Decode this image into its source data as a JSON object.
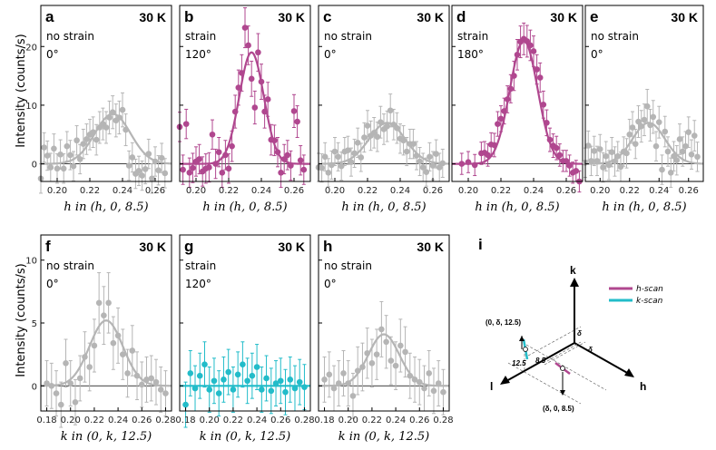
{
  "colors": {
    "gray": "#b5b5b5",
    "magenta": "#b0478f",
    "cyan": "#22bcc9",
    "axis": "#000000"
  },
  "chart_data": [
    {
      "id": "a",
      "type": "scatter",
      "panel_label": "a",
      "temperature": "30 K",
      "strain": "no strain",
      "angle": "0°",
      "color": "gray",
      "xlabel": "h in (h, 0, 8.5)",
      "ylabel": "Intensity (counts/s)",
      "xlim": [
        0.19,
        0.27
      ],
      "ylim": [
        -3,
        27
      ],
      "xticks": [
        0.2,
        0.22,
        0.24,
        0.26
      ],
      "xtick_labels": [
        "0.20",
        "0.22",
        "0.24",
        "0.26"
      ],
      "yticks": [
        0,
        10,
        20
      ],
      "ytick_labels": [
        "0",
        "10",
        "20"
      ],
      "fit": {
        "amp": 8.5,
        "center": 0.234,
        "sigma": 0.011,
        "offset": 0
      },
      "x": [
        0.19,
        0.192,
        0.194,
        0.196,
        0.198,
        0.2,
        0.202,
        0.204,
        0.206,
        0.208,
        0.21,
        0.212,
        0.214,
        0.216,
        0.218,
        0.22,
        0.222,
        0.224,
        0.226,
        0.228,
        0.23,
        0.232,
        0.234,
        0.236,
        0.238,
        0.24,
        0.242,
        0.244,
        0.246,
        0.248,
        0.25,
        0.252,
        0.254,
        0.256,
        0.258,
        0.26,
        0.262,
        0.264,
        0.266
      ],
      "y": [
        -2.5,
        2.8,
        1.4,
        -0.6,
        2.6,
        -0.8,
        1.6,
        -0.8,
        3.0,
        1.5,
        -0.4,
        4.0,
        0.8,
        3.4,
        4.2,
        5.0,
        5.4,
        4.1,
        6.2,
        6.8,
        6.2,
        7.9,
        8.8,
        7.4,
        7.9,
        9.2,
        5.8,
        -0.3,
        1.1,
        -1.7,
        -1.2,
        -2.0,
        -0.9,
        1.7,
        -2.5,
        0.4,
        -1.1,
        1.0,
        -1.6
      ],
      "err": [
        2.5,
        2.5,
        2.5,
        2.4,
        2.5,
        2.5,
        2.5,
        2.5,
        2.5,
        2.5,
        2.5,
        2.5,
        2.5,
        2.5,
        2.6,
        2.6,
        2.6,
        2.6,
        2.7,
        2.7,
        2.7,
        2.8,
        2.8,
        2.8,
        2.8,
        2.9,
        2.7,
        2.5,
        2.5,
        2.5,
        2.5,
        2.5,
        2.5,
        2.5,
        2.5,
        2.5,
        2.5,
        2.5,
        2.5
      ]
    },
    {
      "id": "b",
      "type": "scatter",
      "panel_label": "b",
      "temperature": "30 K",
      "strain": "strain",
      "angle": "120°",
      "color": "magenta",
      "xlabel": "h in (h, 0, 8.5)",
      "ylabel": "",
      "xlim": [
        0.19,
        0.27
      ],
      "ylim": [
        -3,
        27
      ],
      "xticks": [
        0.2,
        0.22,
        0.24,
        0.26
      ],
      "xtick_labels": [
        "0.20",
        "0.22",
        "0.24",
        "0.26"
      ],
      "yticks": [
        0,
        10,
        20
      ],
      "ytick_labels": [
        "",
        "",
        ""
      ],
      "fit": {
        "amp": 19,
        "center": 0.234,
        "sigma": 0.0075,
        "offset": 0
      },
      "x": [
        0.19,
        0.192,
        0.194,
        0.196,
        0.198,
        0.2,
        0.202,
        0.204,
        0.206,
        0.208,
        0.21,
        0.212,
        0.214,
        0.216,
        0.218,
        0.22,
        0.222,
        0.224,
        0.226,
        0.228,
        0.23,
        0.232,
        0.234,
        0.236,
        0.238,
        0.24,
        0.242,
        0.244,
        0.246,
        0.248,
        0.25,
        0.252,
        0.254,
        0.256,
        0.258,
        0.26,
        0.262,
        0.264,
        0.266
      ],
      "y": [
        6.3,
        -1.0,
        6.8,
        -1.5,
        -0.7,
        0.4,
        0.8,
        -1.3,
        -0.8,
        -0.6,
        5.0,
        0.0,
        2.0,
        -1.5,
        1.5,
        -0.8,
        3.0,
        8.9,
        13.0,
        15.5,
        23.2,
        20.2,
        14.5,
        9.6,
        19.0,
        14.0,
        8.9,
        11.0,
        4.1,
        4.0,
        2.0,
        -1.5,
        0.8,
        1.5,
        -0.3,
        9.0,
        7.2,
        0.6,
        -1.0
      ],
      "err": [
        2.5,
        2.5,
        2.5,
        2.5,
        2.5,
        2.5,
        2.5,
        2.5,
        2.5,
        2.5,
        2.5,
        2.5,
        2.5,
        2.5,
        2.5,
        2.5,
        2.6,
        2.8,
        3.0,
        3.1,
        3.4,
        3.3,
        3.0,
        2.8,
        3.2,
        3.0,
        2.8,
        2.9,
        2.6,
        2.6,
        2.5,
        2.5,
        2.5,
        2.5,
        2.5,
        2.8,
        2.7,
        2.5,
        2.5
      ]
    },
    {
      "id": "c",
      "type": "scatter",
      "panel_label": "c",
      "temperature": "30 K",
      "strain": "no strain",
      "angle": "0°",
      "color": "gray",
      "xlabel": "h in (h, 0, 8.5)",
      "ylabel": "",
      "xlim": [
        0.19,
        0.27
      ],
      "ylim": [
        -3,
        27
      ],
      "xticks": [
        0.2,
        0.22,
        0.24,
        0.26
      ],
      "xtick_labels": [
        "0.20",
        "0.22",
        "0.24",
        "0.26"
      ],
      "yticks": [
        0,
        10,
        20
      ],
      "ytick_labels": [
        "",
        "",
        ""
      ],
      "fit": {
        "amp": 7,
        "center": 0.232,
        "sigma": 0.011,
        "offset": 0
      },
      "x": [
        0.19,
        0.192,
        0.194,
        0.196,
        0.198,
        0.2,
        0.202,
        0.204,
        0.206,
        0.208,
        0.21,
        0.212,
        0.214,
        0.216,
        0.218,
        0.22,
        0.222,
        0.224,
        0.226,
        0.228,
        0.23,
        0.232,
        0.234,
        0.236,
        0.238,
        0.24,
        0.242,
        0.244,
        0.246,
        0.248,
        0.25,
        0.252,
        0.254,
        0.256,
        0.258,
        0.26,
        0.262,
        0.264,
        0.266
      ],
      "y": [
        -0.6,
        -0.7,
        1.2,
        -1.5,
        -0.2,
        2.1,
        1.2,
        -0.4,
        2.1,
        2.3,
        0.3,
        1.8,
        3.6,
        1.1,
        4.5,
        6.5,
        4.8,
        5.3,
        4.6,
        7.1,
        5.9,
        6.4,
        9.1,
        6.7,
        6.1,
        4.3,
        4.0,
        2.1,
        3.4,
        3.4,
        1.4,
        0.4,
        -0.6,
        -1.4,
        1.2,
        -0.3,
        1.7,
        -0.6,
        0.1
      ],
      "err": [
        2.4,
        2.4,
        2.4,
        2.4,
        2.4,
        2.4,
        2.4,
        2.4,
        2.4,
        2.4,
        2.4,
        2.4,
        2.5,
        2.4,
        2.5,
        2.6,
        2.5,
        2.6,
        2.5,
        2.7,
        2.6,
        2.6,
        2.8,
        2.6,
        2.6,
        2.5,
        2.5,
        2.4,
        2.5,
        2.5,
        2.4,
        2.4,
        2.4,
        2.4,
        2.4,
        2.4,
        2.4,
        2.4,
        2.4
      ]
    },
    {
      "id": "d",
      "type": "scatter",
      "panel_label": "d",
      "temperature": "30 K",
      "strain": "strain",
      "angle": "180°",
      "color": "magenta",
      "xlabel": "h in (h, 0, 8.5)",
      "ylabel": "",
      "xlim": [
        0.19,
        0.27
      ],
      "ylim": [
        -3,
        27
      ],
      "xticks": [
        0.2,
        0.22,
        0.24,
        0.26
      ],
      "xtick_labels": [
        "0.20",
        "0.22",
        "0.24",
        "0.26"
      ],
      "yticks": [
        0,
        10,
        20
      ],
      "ytick_labels": [
        "",
        "",
        ""
      ],
      "fit": {
        "amp": 21,
        "center": 0.234,
        "sigma": 0.0085,
        "offset": 0
      },
      "x": [
        0.196,
        0.2,
        0.204,
        0.208,
        0.21,
        0.212,
        0.214,
        0.216,
        0.218,
        0.22,
        0.222,
        0.224,
        0.226,
        0.228,
        0.23,
        0.232,
        0.234,
        0.236,
        0.238,
        0.24,
        0.242,
        0.244,
        0.246,
        0.248,
        0.25,
        0.252,
        0.254,
        0.256,
        0.258,
        0.26,
        0.262,
        0.264,
        0.266,
        0.268
      ],
      "y": [
        0.0,
        0.3,
        -0.2,
        1.8,
        1.9,
        1.5,
        3.3,
        3.2,
        6.8,
        7.7,
        9.0,
        11.0,
        12.8,
        15.0,
        18.6,
        20.8,
        21.3,
        20.9,
        20.2,
        19.2,
        16.1,
        14.7,
        10.1,
        7.0,
        4.1,
        3.1,
        2.7,
        1.5,
        0.5,
        0.5,
        -0.3,
        -1.5,
        -1.2,
        -3.0
      ],
      "err": [
        1.8,
        1.8,
        1.8,
        1.9,
        1.9,
        1.9,
        2.0,
        2.0,
        2.1,
        2.2,
        2.2,
        2.3,
        2.4,
        2.5,
        2.6,
        2.7,
        2.7,
        2.7,
        2.6,
        2.6,
        2.5,
        2.5,
        2.3,
        2.2,
        2.0,
        2.0,
        2.0,
        1.9,
        1.8,
        1.8,
        1.8,
        1.8,
        1.8,
        1.8
      ]
    },
    {
      "id": "e",
      "type": "scatter",
      "panel_label": "e",
      "temperature": "30 K",
      "strain": "no strain",
      "angle": "0°",
      "color": "gray",
      "xlabel": "h in (h, 0, 8.5)",
      "ylabel": "",
      "xlim": [
        0.19,
        0.27
      ],
      "ylim": [
        -3,
        27
      ],
      "xticks": [
        0.2,
        0.22,
        0.24,
        0.26
      ],
      "xtick_labels": [
        "0.20",
        "0.22",
        "0.24",
        "0.26"
      ],
      "yticks": [
        0,
        10,
        20
      ],
      "ytick_labels": [
        "",
        "",
        ""
      ],
      "fit": {
        "amp": 7,
        "center": 0.233,
        "sigma": 0.011,
        "offset": 0
      },
      "x": [
        0.19,
        0.192,
        0.194,
        0.196,
        0.198,
        0.2,
        0.202,
        0.204,
        0.206,
        0.208,
        0.21,
        0.212,
        0.214,
        0.216,
        0.218,
        0.22,
        0.222,
        0.224,
        0.226,
        0.228,
        0.23,
        0.232,
        0.234,
        0.236,
        0.238,
        0.24,
        0.242,
        0.244,
        0.246,
        0.248,
        0.25,
        0.252,
        0.254,
        0.256,
        0.258,
        0.26,
        0.262,
        0.264,
        0.266
      ],
      "y": [
        0.2,
        3.1,
        0.5,
        2.2,
        0.5,
        2.5,
        -0.6,
        1.3,
        -0.2,
        2.0,
        0.4,
        1.3,
        -0.5,
        2.1,
        1.8,
        5.0,
        6.2,
        3.4,
        7.2,
        6.4,
        7.5,
        9.8,
        6.6,
        8.0,
        3.0,
        7.1,
        -1.0,
        5.5,
        2.1,
        -1.5,
        1.3,
        0.6,
        4.2,
        2.1,
        3.0,
        5.4,
        1.6,
        4.8,
        1.2
      ],
      "err": [
        2.5,
        2.5,
        2.5,
        2.5,
        2.5,
        2.5,
        2.5,
        2.5,
        2.5,
        2.5,
        2.5,
        2.5,
        2.5,
        2.5,
        2.5,
        2.6,
        2.7,
        2.5,
        2.7,
        2.7,
        2.7,
        2.9,
        2.7,
        2.8,
        2.5,
        2.7,
        2.5,
        2.6,
        2.5,
        2.5,
        2.5,
        2.5,
        2.6,
        2.5,
        2.5,
        2.6,
        2.5,
        2.6,
        2.5
      ]
    },
    {
      "id": "f",
      "type": "scatter",
      "panel_label": "f",
      "temperature": "30 K",
      "strain": "no strain",
      "angle": "0°",
      "color": "gray",
      "xlabel": "k in (0, k, 12.5)",
      "ylabel": "Intensity (counts/s)",
      "xlim": [
        0.175,
        0.285
      ],
      "ylim": [
        -2,
        12
      ],
      "xticks": [
        0.18,
        0.2,
        0.22,
        0.24,
        0.26,
        0.28
      ],
      "xtick_labels": [
        "0.18",
        "0.20",
        "0.22",
        "0.24",
        "0.26",
        "0.28"
      ],
      "yticks": [
        0,
        5,
        10
      ],
      "ytick_labels": [
        "0",
        "5",
        "10"
      ],
      "fit": {
        "amp": 5.2,
        "center": 0.23,
        "sigma": 0.014,
        "offset": 0
      },
      "x": [
        0.18,
        0.184,
        0.188,
        0.192,
        0.196,
        0.2,
        0.204,
        0.208,
        0.212,
        0.216,
        0.22,
        0.224,
        0.228,
        0.232,
        0.236,
        0.24,
        0.244,
        0.248,
        0.252,
        0.256,
        0.26,
        0.264,
        0.268,
        0.272,
        0.276,
        0.28
      ],
      "y": [
        0.2,
        0.0,
        -0.6,
        -1.5,
        1.8,
        0.2,
        -1.3,
        0.6,
        2.3,
        1.5,
        3.2,
        6.6,
        5.6,
        6.6,
        3.4,
        4.0,
        2.5,
        1.0,
        2.8,
        0.8,
        0.1,
        0.5,
        0.6,
        0.3,
        -0.3,
        -0.6
      ],
      "err": [
        1.8,
        1.8,
        1.8,
        1.8,
        1.9,
        1.8,
        1.8,
        1.8,
        2.0,
        1.9,
        2.1,
        2.4,
        2.3,
        2.4,
        2.1,
        2.2,
        2.0,
        1.9,
        2.0,
        1.9,
        1.8,
        1.8,
        1.8,
        1.8,
        1.8,
        1.8
      ]
    },
    {
      "id": "g",
      "type": "scatter",
      "panel_label": "g",
      "temperature": "30 K",
      "strain": "strain",
      "angle": "120°",
      "color": "cyan",
      "xlabel": "k in (0, k, 12.5)",
      "ylabel": "",
      "xlim": [
        0.175,
        0.285
      ],
      "ylim": [
        -2,
        12
      ],
      "xticks": [
        0.18,
        0.2,
        0.22,
        0.24,
        0.26,
        0.28
      ],
      "xtick_labels": [
        "0.18",
        "0.20",
        "0.22",
        "0.24",
        "0.26",
        "0.28"
      ],
      "yticks": [
        0,
        5,
        10
      ],
      "ytick_labels": [
        "",
        "",
        ""
      ],
      "fit": {
        "amp": 0,
        "center": 0.23,
        "sigma": 0.014,
        "offset": 0
      },
      "x": [
        0.18,
        0.184,
        0.188,
        0.192,
        0.196,
        0.2,
        0.204,
        0.208,
        0.212,
        0.216,
        0.22,
        0.224,
        0.228,
        0.232,
        0.236,
        0.24,
        0.244,
        0.248,
        0.252,
        0.256,
        0.26,
        0.264,
        0.268,
        0.272,
        0.276,
        0.28
      ],
      "y": [
        -1.5,
        1.0,
        -0.2,
        0.8,
        1.7,
        -0.3,
        0.4,
        -0.6,
        0.5,
        1.1,
        -0.3,
        0.9,
        1.7,
        0.4,
        0.8,
        1.5,
        -0.3,
        0.6,
        -0.4,
        0.2,
        0.4,
        -0.5,
        0.5,
        -0.2,
        0.3,
        -0.1
      ],
      "err": [
        1.8,
        1.8,
        1.8,
        1.8,
        1.8,
        1.8,
        1.8,
        1.8,
        1.8,
        1.8,
        1.8,
        1.8,
        1.8,
        1.8,
        1.8,
        1.8,
        1.8,
        1.8,
        1.8,
        1.8,
        1.8,
        1.8,
        1.8,
        1.8,
        1.8,
        1.8
      ]
    },
    {
      "id": "h",
      "type": "scatter",
      "panel_label": "h",
      "temperature": "30 K",
      "strain": "no strain",
      "angle": "0°",
      "color": "gray",
      "xlabel": "k in (0, k, 12.5)",
      "ylabel": "",
      "xlim": [
        0.175,
        0.285
      ],
      "ylim": [
        -2,
        12
      ],
      "xticks": [
        0.18,
        0.2,
        0.22,
        0.24,
        0.26,
        0.28
      ],
      "xtick_labels": [
        "0.18",
        "0.20",
        "0.22",
        "0.24",
        "0.26",
        "0.28"
      ],
      "yticks": [
        0,
        5,
        10
      ],
      "ytick_labels": [
        "",
        "",
        ""
      ],
      "fit": {
        "amp": 4.1,
        "center": 0.23,
        "sigma": 0.013,
        "offset": 0
      },
      "x": [
        0.18,
        0.184,
        0.188,
        0.192,
        0.196,
        0.2,
        0.204,
        0.208,
        0.212,
        0.216,
        0.22,
        0.224,
        0.228,
        0.232,
        0.236,
        0.24,
        0.244,
        0.248,
        0.252,
        0.256,
        0.26,
        0.264,
        0.268,
        0.272,
        0.276,
        0.28
      ],
      "y": [
        0.5,
        0.9,
        -0.2,
        0.2,
        1.0,
        0.2,
        -0.8,
        1.2,
        1.5,
        2.6,
        1.8,
        2.5,
        4.5,
        3.5,
        2.0,
        1.6,
        3.2,
        2.7,
        0.8,
        0.5,
        0.3,
        -0.2,
        1.0,
        -0.4,
        0.2,
        -0.5
      ],
      "err": [
        1.8,
        1.8,
        1.8,
        1.8,
        1.8,
        1.8,
        1.8,
        1.9,
        1.9,
        2.0,
        1.9,
        2.0,
        2.2,
        2.1,
        1.9,
        1.9,
        2.1,
        2.0,
        1.8,
        1.8,
        1.8,
        1.8,
        1.8,
        1.8,
        1.8,
        1.8
      ]
    }
  ],
  "diagram": {
    "panel_label": "i",
    "axes": {
      "k": "k",
      "h": "h",
      "l": "l"
    },
    "legend": [
      {
        "label": "h-scan",
        "color": "magenta"
      },
      {
        "label": "k-scan",
        "color": "cyan"
      }
    ],
    "points": {
      "k_point": "(0, δ, 12.5)",
      "h_point": "(δ, 0, 8.5)"
    },
    "labels": {
      "l1": "12.5",
      "l2": "8.5",
      "delta_a": "δ",
      "delta_b": "δ"
    }
  }
}
